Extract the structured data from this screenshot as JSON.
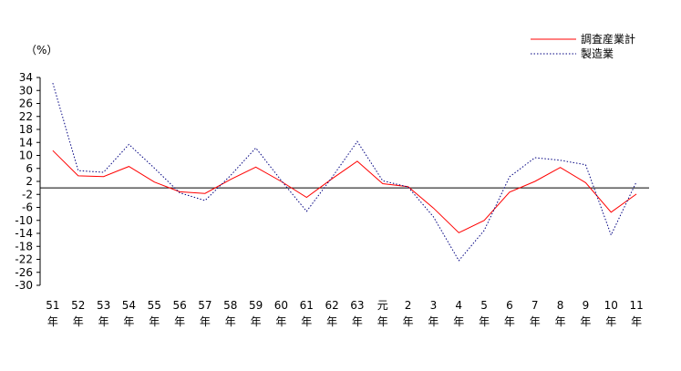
{
  "chart_data": {
    "type": "line",
    "y_unit": "（%）",
    "categories": [
      {
        "top": "51",
        "bottom": "年"
      },
      {
        "top": "52",
        "bottom": "年"
      },
      {
        "top": "53",
        "bottom": "年"
      },
      {
        "top": "54",
        "bottom": "年"
      },
      {
        "top": "55",
        "bottom": "年"
      },
      {
        "top": "56",
        "bottom": "年"
      },
      {
        "top": "57",
        "bottom": "年"
      },
      {
        "top": "58",
        "bottom": "年"
      },
      {
        "top": "59",
        "bottom": "年"
      },
      {
        "top": "60",
        "bottom": "年"
      },
      {
        "top": "61",
        "bottom": "年"
      },
      {
        "top": "62",
        "bottom": "年"
      },
      {
        "top": "63",
        "bottom": "年"
      },
      {
        "top": "元",
        "bottom": "年"
      },
      {
        "top": "2",
        "bottom": "年"
      },
      {
        "top": "3",
        "bottom": "年"
      },
      {
        "top": "4",
        "bottom": "年"
      },
      {
        "top": "5",
        "bottom": "年"
      },
      {
        "top": "6",
        "bottom": "年"
      },
      {
        "top": "7",
        "bottom": "年"
      },
      {
        "top": "8",
        "bottom": "年"
      },
      {
        "top": "9",
        "bottom": "年"
      },
      {
        "top": "10",
        "bottom": "年"
      },
      {
        "top": "11",
        "bottom": "年"
      }
    ],
    "ylim": [
      -30,
      34
    ],
    "y_ticks": [
      34,
      30,
      26,
      22,
      18,
      14,
      10,
      6,
      2,
      -2,
      -6,
      -10,
      -14,
      -18,
      -22,
      -26,
      -30
    ],
    "zero_line": 0,
    "series": [
      {
        "name": "調査産業計",
        "color": "#ff0000",
        "dash": "solid",
        "values": [
          11.5,
          3.7,
          3.5,
          6.6,
          1.8,
          -1.2,
          -1.7,
          2.6,
          6.4,
          2.0,
          -2.9,
          2.8,
          8.2,
          1.3,
          0.4,
          -6.2,
          -13.8,
          -10.0,
          -1.3,
          2.0,
          6.3,
          1.6,
          -7.5,
          -1.9
        ]
      },
      {
        "name": "製造業",
        "color": "#000080",
        "dash": "dotted",
        "values": [
          32.3,
          5.3,
          4.8,
          13.4,
          6.1,
          -1.5,
          -3.9,
          3.8,
          12.3,
          2.3,
          -7.2,
          3.2,
          14.3,
          2.2,
          0.3,
          -8.9,
          -22.4,
          -13.1,
          3.4,
          9.3,
          8.5,
          7.1,
          -14.5,
          1.9
        ]
      }
    ],
    "legend_position": "top-right",
    "grid": false
  }
}
